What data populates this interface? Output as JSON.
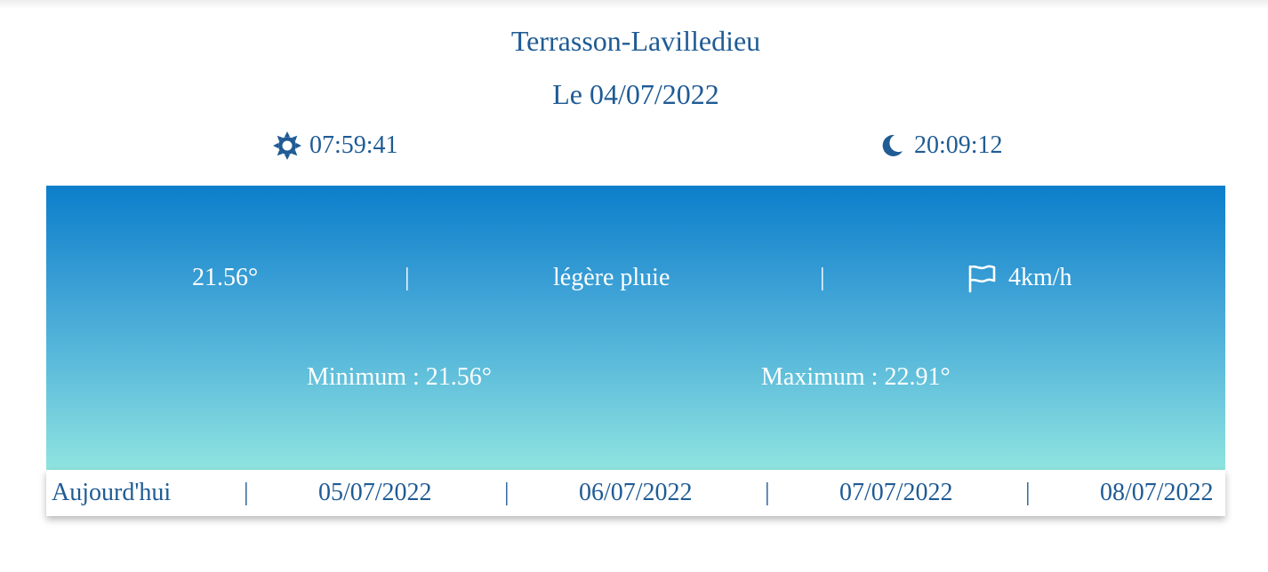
{
  "location": {
    "city": "Terrasson-Lavilledieu",
    "date_label": "Le 04/07/2022"
  },
  "sun": {
    "sunrise_icon": "sun-icon",
    "sunrise": "07:59:41",
    "sunset_icon": "moon-icon",
    "sunset": "20:09:12"
  },
  "current": {
    "temperature": "21.56°",
    "separator": "|",
    "condition": "légère pluie",
    "wind_icon": "flag-icon",
    "wind": "4km/h",
    "minimum": "Minimum : 21.56°",
    "maximum": "Maximum : 22.91°"
  },
  "forecast": {
    "separator": "|",
    "days": [
      {
        "label": "Aujourd'hui"
      },
      {
        "label": "05/07/2022"
      },
      {
        "label": "06/07/2022"
      },
      {
        "label": "07/07/2022"
      },
      {
        "label": "08/07/2022"
      }
    ]
  },
  "colors": {
    "text_primary": "#1f5b94",
    "panel_top": "#0b7ecb",
    "panel_bottom": "#8fe4e0"
  }
}
